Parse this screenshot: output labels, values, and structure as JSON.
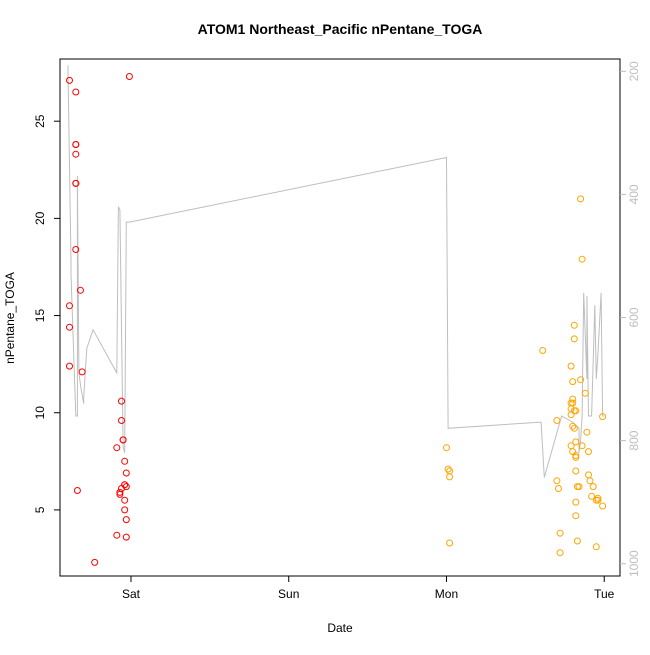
{
  "chart_data": {
    "type": "scatter",
    "title": "ATOM1 Northeast_Pacific nPentane_TOGA",
    "xlabel": "Date",
    "ylabel": "nPentane_TOGA",
    "x_units": "days since Sat 00:00",
    "xlim": [
      -0.45,
      3.1
    ],
    "ylim": [
      1.6,
      28.2
    ],
    "y_ticks": [
      5,
      10,
      15,
      20,
      25
    ],
    "x_ticks": [
      {
        "value": 0,
        "label": "Sat"
      },
      {
        "value": 1,
        "label": "Sun"
      },
      {
        "value": 2,
        "label": "Mon"
      },
      {
        "value": 3,
        "label": "Tue"
      }
    ],
    "right_axis": {
      "ticks": [
        200,
        400,
        600,
        800,
        1000
      ],
      "lim": [
        1020,
        180
      ],
      "color": "#bebebe"
    },
    "grid": false,
    "legend": "none",
    "series": [
      {
        "color": "#ff0000",
        "marker": "open-circle",
        "x": [
          -0.39,
          -0.39,
          -0.39,
          -0.39,
          -0.35,
          -0.35,
          -0.35,
          -0.35,
          -0.35,
          -0.35,
          -0.35,
          -0.34,
          -0.32,
          -0.31,
          -0.23,
          -0.09,
          -0.09,
          -0.07,
          -0.07,
          -0.06,
          -0.06,
          -0.06,
          -0.05,
          -0.05,
          -0.04,
          -0.04,
          -0.04,
          -0.04,
          -0.04,
          -0.03,
          -0.03,
          -0.03,
          -0.03,
          -0.01
        ],
        "y": [
          27.1,
          15.5,
          14.4,
          12.4,
          26.5,
          23.8,
          23.8,
          23.3,
          21.8,
          21.8,
          18.4,
          6.0,
          16.3,
          12.1,
          2.3,
          8.2,
          3.7,
          5.8,
          5.9,
          10.6,
          9.6,
          6.1,
          8.6,
          8.6,
          7.5,
          6.3,
          6.3,
          5.5,
          5.0,
          4.5,
          3.6,
          6.9,
          6.2,
          27.3
        ]
      },
      {
        "color": "#ffa500",
        "marker": "open-circle",
        "x": [
          2.0,
          2.01,
          2.02,
          2.02,
          2.02,
          2.61,
          2.7,
          2.7,
          2.71,
          2.72,
          2.72,
          2.79,
          2.79,
          2.79,
          2.79,
          2.79,
          2.8,
          2.8,
          2.8,
          2.8,
          2.8,
          2.81,
          2.81,
          2.81,
          2.81,
          2.82,
          2.82,
          2.82,
          2.82,
          2.82,
          2.82,
          2.82,
          2.83,
          2.83,
          2.84,
          2.85,
          2.85,
          2.86,
          2.86,
          2.88,
          2.89,
          2.9,
          2.9,
          2.91,
          2.92,
          2.93,
          2.95,
          2.95,
          2.96,
          2.96,
          2.99,
          2.99
        ],
        "y": [
          8.2,
          7.1,
          7.0,
          6.7,
          3.3,
          13.2,
          9.6,
          6.5,
          6.1,
          3.8,
          2.8,
          12.4,
          10.5,
          10.2,
          9.9,
          8.3,
          11.6,
          10.7,
          10.5,
          9.3,
          8.0,
          14.5,
          13.8,
          10.1,
          9.2,
          10.1,
          8.5,
          7.8,
          7.7,
          7.0,
          5.4,
          4.7,
          6.2,
          3.4,
          6.2,
          21.0,
          11.7,
          17.9,
          8.3,
          11.0,
          9.0,
          8.0,
          6.8,
          6.5,
          5.7,
          6.2,
          5.5,
          3.1,
          5.5,
          5.6,
          9.8,
          5.2
        ]
      }
    ],
    "background_line": {
      "color": "#bebebe",
      "axis": "right",
      "x": [
        -0.4,
        -0.38,
        -0.38,
        -0.35,
        -0.34,
        -0.34,
        -0.33,
        -0.32,
        -0.3,
        -0.3,
        -0.28,
        -0.24,
        -0.09,
        -0.08,
        -0.07,
        -0.05,
        -0.04,
        -0.03,
        -0.01,
        2.0,
        2.01,
        2.6,
        2.62,
        2.62,
        2.73,
        2.8,
        2.82,
        2.84,
        2.84,
        2.85,
        2.86,
        2.87,
        2.89,
        2.89,
        2.9,
        2.92,
        2.94,
        2.95,
        2.96,
        2.98,
        2.99,
        3.0
      ],
      "y": [
        190,
        510,
        530,
        760,
        760,
        370,
        690,
        710,
        740,
        730,
        650,
        620,
        690,
        420,
        425,
        810,
        820,
        445,
        445,
        340,
        780,
        770,
        860,
        860,
        760,
        770,
        775,
        780,
        820,
        800,
        760,
        560,
        700,
        565,
        760,
        760,
        580,
        700,
        660,
        560,
        760,
        760
      ]
    }
  }
}
